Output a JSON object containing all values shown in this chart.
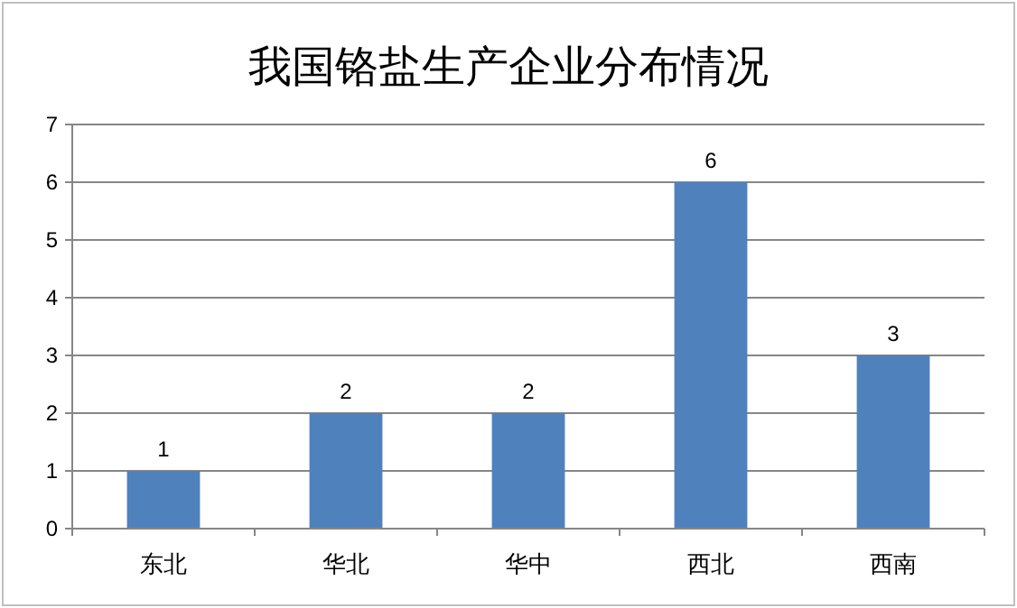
{
  "chart_data": {
    "type": "bar",
    "title": "我国铬盐生产企业分布情况",
    "categories": [
      "东北",
      "华北",
      "华中",
      "西北",
      "西南"
    ],
    "values": [
      1,
      2,
      2,
      6,
      3
    ],
    "color": "#4f81bd",
    "ylim": [
      0,
      7
    ],
    "yticks": [
      0,
      1,
      2,
      3,
      4,
      5,
      6,
      7
    ],
    "grid": "y",
    "data_labels": true
  }
}
